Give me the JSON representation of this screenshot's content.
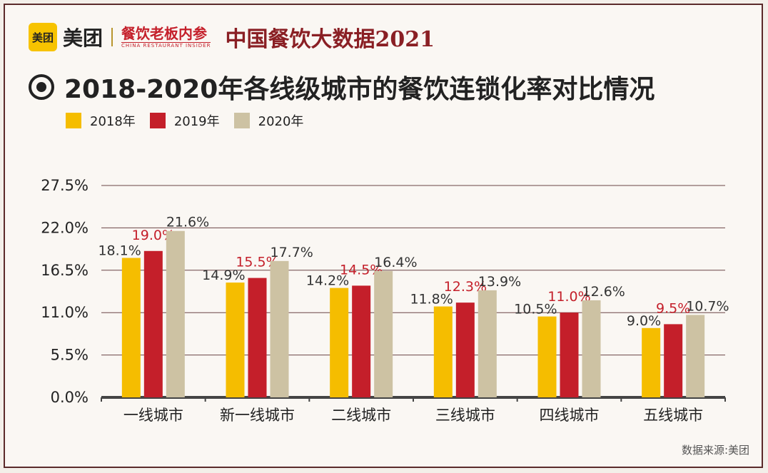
{
  "header": {
    "logo_badge": "美团",
    "logo_text": "美团",
    "brand_cn": "餐饮老板内参",
    "brand_en": "CHINA RESTAURANT INSIDER",
    "title": "中国餐饮大数据2021"
  },
  "colors": {
    "y2018": "#f5bd00",
    "y2019": "#c41f2a",
    "y2020": "#cdc2a3",
    "grid": "#6b4646",
    "axis": "#444444"
  },
  "chart_data": {
    "type": "bar",
    "title": "2018-2020年各线级城市的餐饮连锁化率对比情况",
    "categories": [
      "一线城市",
      "新一线城市",
      "二线城市",
      "三线城市",
      "四线城市",
      "五线城市"
    ],
    "series": [
      {
        "name": "2018年",
        "values": [
          18.1,
          14.9,
          14.2,
          11.8,
          10.5,
          9.0
        ],
        "labels": [
          "18.1%",
          "14.9%",
          "14.2%",
          "11.8%",
          "10.5%",
          "9.0%"
        ]
      },
      {
        "name": "2019年",
        "values": [
          19.0,
          15.5,
          14.5,
          12.3,
          11.0,
          9.5
        ],
        "labels": [
          "19.0%",
          "15.5%",
          "14.5%",
          "12.3%",
          "11.0%",
          "9.5%"
        ]
      },
      {
        "name": "2020年",
        "values": [
          21.6,
          17.7,
          16.4,
          13.9,
          12.6,
          10.7
        ],
        "labels": [
          "21.6%",
          "17.7%",
          "16.4%",
          "13.9%",
          "12.6%",
          "10.7%"
        ]
      }
    ],
    "yticks": [
      0,
      5.5,
      11,
      16.5,
      22,
      27.5
    ],
    "ytick_labels": [
      "0.0%",
      "5.5%",
      "11.0%",
      "16.5%",
      "22.0%",
      "27.5%"
    ],
    "ylim": [
      0,
      27.5
    ],
    "xlabel": "",
    "ylabel": "",
    "grid": true,
    "legend_position": "top-left",
    "source": "数据来源:美团"
  }
}
